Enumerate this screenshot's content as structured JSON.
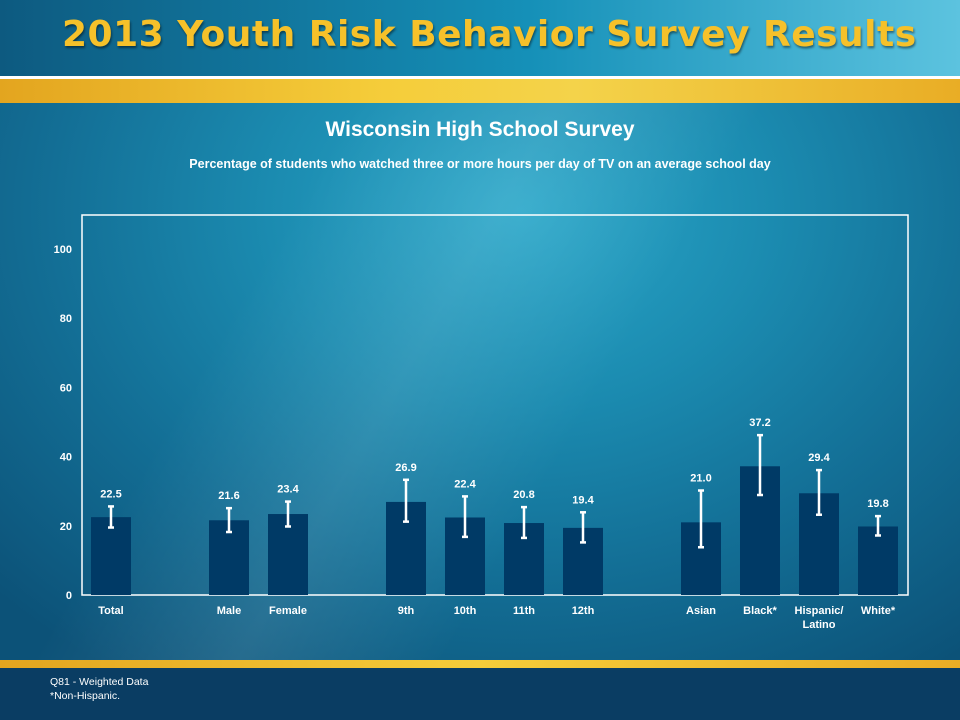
{
  "header": {
    "title": "2013 Youth Risk Behavior Survey Results"
  },
  "chart_title": "Wisconsin High School Survey",
  "chart_subtitle": "Percentage of students who watched three or more hours per day of TV on an average school day",
  "footer": {
    "note1": "Q81 - Weighted Data",
    "note2": "*Non-Hispanic."
  },
  "colors": {
    "bar": "#003a66",
    "error_bar": "#ffffff",
    "title_gold": "#f6c12a",
    "background": "#1b8bb0"
  },
  "chart_data": {
    "type": "bar",
    "title": "Wisconsin High School Survey",
    "subtitle": "Percentage of students who watched three or more hours per day of TV on an average school day",
    "ylim": [
      0,
      100
    ],
    "yticks": [
      "0",
      "20",
      "40",
      "60",
      "80",
      "100"
    ],
    "grid": false,
    "categories": [
      {
        "label": [
          "Total"
        ],
        "value": 22.5,
        "value_label": "22.5",
        "ci": [
          19.5,
          25.6
        ]
      },
      {
        "label": [
          "Male"
        ],
        "value": 21.6,
        "value_label": "21.6",
        "ci": [
          18.2,
          25.1
        ]
      },
      {
        "label": [
          "Female"
        ],
        "value": 23.4,
        "value_label": "23.4",
        "ci": [
          19.8,
          27.0
        ]
      },
      {
        "label": [
          "9th"
        ],
        "value": 26.9,
        "value_label": "26.9",
        "ci": [
          21.2,
          33.3
        ]
      },
      {
        "label": [
          "10th"
        ],
        "value": 22.4,
        "value_label": "22.4",
        "ci": [
          16.8,
          28.5
        ]
      },
      {
        "label": [
          "11th"
        ],
        "value": 20.8,
        "value_label": "20.8",
        "ci": [
          16.5,
          25.4
        ]
      },
      {
        "label": [
          "12th"
        ],
        "value": 19.4,
        "value_label": "19.4",
        "ci": [
          15.2,
          23.9
        ]
      },
      {
        "label": [
          "Asian"
        ],
        "value": 21.0,
        "value_label": "21.0",
        "ci": [
          13.8,
          30.2
        ]
      },
      {
        "label": [
          "Black*"
        ],
        "value": 37.2,
        "value_label": "37.2",
        "ci": [
          28.9,
          46.2
        ]
      },
      {
        "label": [
          "Hispanic/",
          "Latino"
        ],
        "value": 29.4,
        "value_label": "29.4",
        "ci": [
          23.2,
          36.1
        ]
      },
      {
        "label": [
          "White*"
        ],
        "value": 19.8,
        "value_label": "19.8",
        "ci": [
          17.2,
          22.8
        ]
      }
    ]
  }
}
